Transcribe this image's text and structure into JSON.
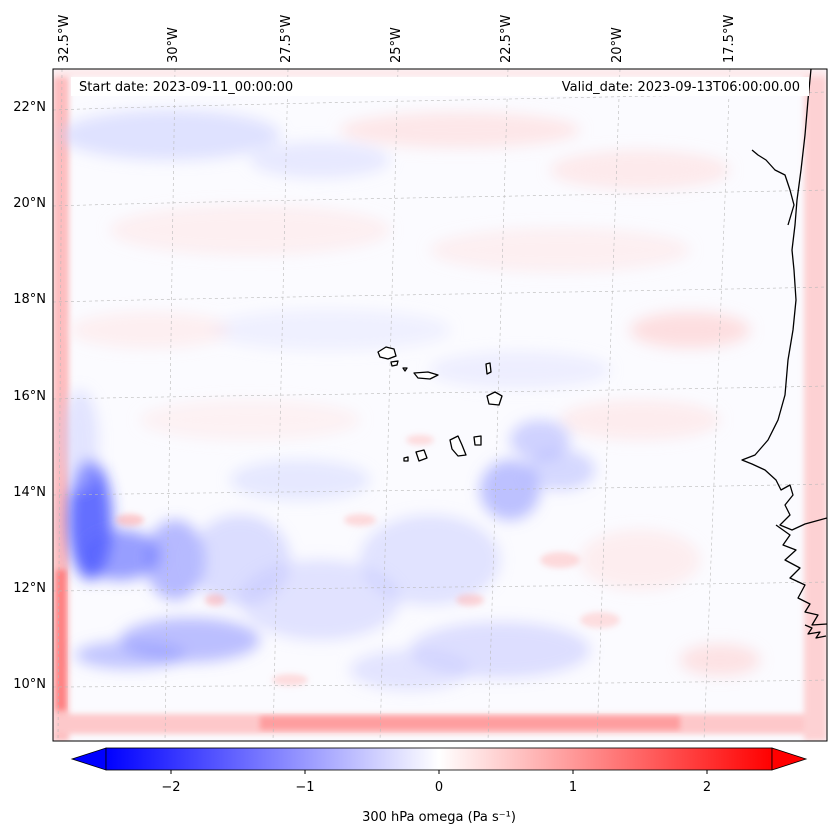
{
  "header": {
    "start_date": "Start date: 2023-09-11_00:00:00",
    "valid_date": "Valid_date: 2023-09-13T06:00:00.00"
  },
  "map": {
    "lon_labels": [
      "32.5°W",
      "30°W",
      "27.5°W",
      "25°W",
      "22.5°W",
      "20°W",
      "17.5°W"
    ],
    "lat_labels": [
      "22°N",
      "20°N",
      "18°N",
      "16°N",
      "14°N",
      "12°N",
      "10°N"
    ],
    "gridlines": true,
    "coastline_color": "#000000",
    "features": [
      "cape-verde-islands",
      "west-african-coastline"
    ]
  },
  "colorbar": {
    "label": "300 hPa omega (Pa s⁻¹)",
    "ticks": [
      "−2",
      "−1",
      "0",
      "1",
      "2"
    ],
    "min": -2.6,
    "max": 2.6,
    "colormap": "bwr",
    "extend": "both"
  },
  "colors": {
    "negative": "#0000ff",
    "zero": "#ffffff",
    "positive": "#ff0000"
  }
}
